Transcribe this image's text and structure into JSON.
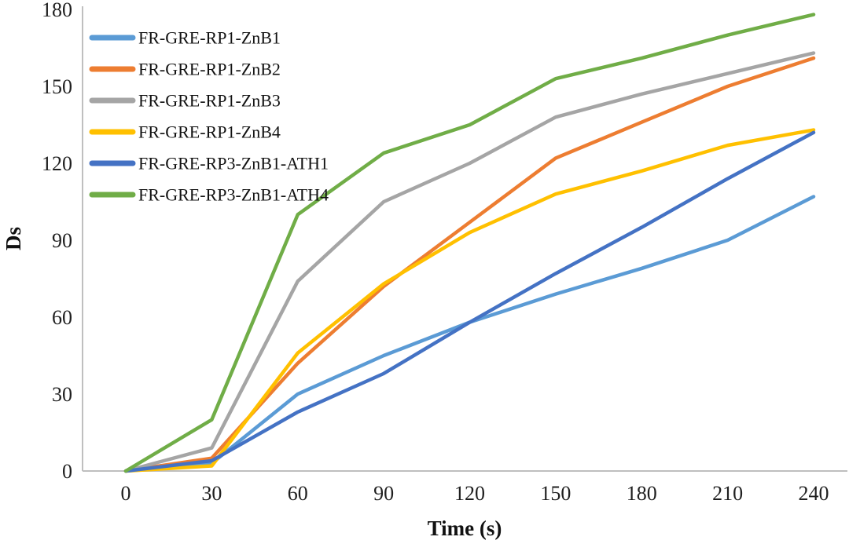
{
  "chart_data": {
    "type": "line",
    "title": "",
    "xlabel": "Time (s)",
    "ylabel": "Ds",
    "x": [
      0,
      30,
      60,
      90,
      120,
      150,
      180,
      210,
      240
    ],
    "xticks": [
      "0",
      "30",
      "60",
      "90",
      "120",
      "150",
      "180",
      "210",
      "240"
    ],
    "yticks": [
      0,
      30,
      60,
      90,
      120,
      150,
      180
    ],
    "ylim": [
      0,
      180
    ],
    "grid": false,
    "legend_position": "top-left-inside",
    "series": [
      {
        "name": "FR-GRE-RP1-ZnB1",
        "color": "#5B9BD5",
        "values": [
          0,
          3,
          30,
          45,
          58,
          69,
          79,
          90,
          107
        ]
      },
      {
        "name": "FR-GRE-RP1-ZnB2",
        "color": "#ED7D31",
        "values": [
          0,
          5,
          42,
          72,
          97,
          122,
          136,
          150,
          161
        ]
      },
      {
        "name": "FR-GRE-RP1-ZnB3",
        "color": "#A5A5A5",
        "values": [
          0,
          9,
          74,
          105,
          120,
          138,
          147,
          155,
          163
        ]
      },
      {
        "name": "FR-GRE-RP1-ZnB4",
        "color": "#FFC000",
        "values": [
          0,
          2,
          46,
          73,
          93,
          108,
          117,
          127,
          133
        ]
      },
      {
        "name": "FR-GRE-RP3-ZnB1-ATH1",
        "color": "#4472C4",
        "values": [
          0,
          4,
          23,
          38,
          58,
          77,
          95,
          114,
          132
        ]
      },
      {
        "name": "FR-GRE-RP3-ZnB1-ATH4",
        "color": "#70AD47",
        "values": [
          0,
          20,
          100,
          124,
          135,
          153,
          161,
          170,
          178
        ]
      }
    ],
    "axis_color": "#BFBFBF",
    "text_color": "#1f1f1f"
  }
}
